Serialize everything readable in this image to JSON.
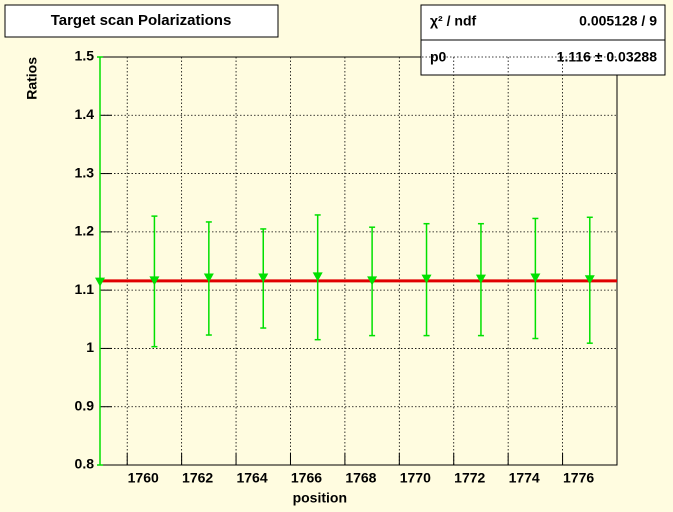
{
  "chart_data": {
    "type": "errorbar",
    "title": "Target scan Polarizations",
    "x_label": "position",
    "y_label": "Ratios",
    "x": [
      1759,
      1761,
      1763,
      1765,
      1767,
      1769,
      1771,
      1773,
      1775,
      1777
    ],
    "values": [
      1.113,
      1.115,
      1.12,
      1.12,
      1.122,
      1.115,
      1.118,
      1.118,
      1.12,
      1.117
    ],
    "errors": [
      0.4,
      0.112,
      0.097,
      0.085,
      0.107,
      0.093,
      0.096,
      0.096,
      0.103,
      0.108
    ],
    "color": "#00e000",
    "xlim": [
      1759,
      1778
    ],
    "ylim": [
      0.8,
      1.5
    ],
    "xticks": [
      1760,
      1762,
      1764,
      1766,
      1768,
      1770,
      1772,
      1774,
      1776
    ],
    "yticks": [
      0.8,
      0.9,
      1,
      1.1,
      1.2,
      1.3,
      1.4,
      1.5
    ],
    "grid": true,
    "fit": {
      "value": 1.116,
      "color": "#e00000"
    },
    "stats": [
      {
        "label": "χ² / ndf",
        "text": "0.005128 / 9"
      },
      {
        "label": "p0",
        "text": "1.116 ± 0.03288"
      }
    ]
  }
}
